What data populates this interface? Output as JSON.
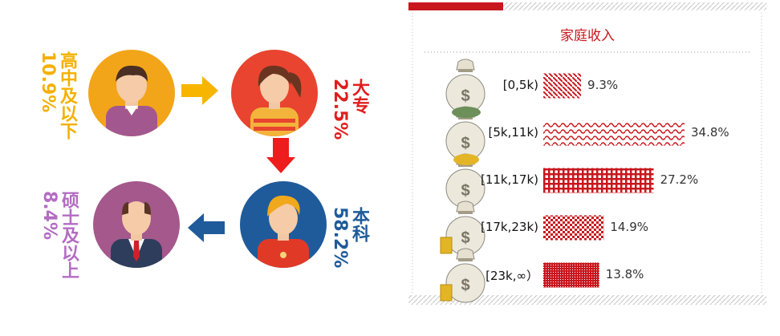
{
  "education": {
    "items": [
      {
        "key": "high-school",
        "label": "高中及以下",
        "percent": "10.9%",
        "color": "#f4b000",
        "value": 10.9
      },
      {
        "key": "junior-college",
        "label": "大专",
        "percent": "22.5%",
        "color": "#e01e1e",
        "value": 22.5
      },
      {
        "key": "bachelor",
        "label": "本科",
        "percent": "58.2%",
        "color": "#1f5b9a",
        "value": 58.2
      },
      {
        "key": "master-plus",
        "label": "硕士及以上",
        "percent": "8.4%",
        "color": "#b36cc2",
        "value": 8.4
      }
    ]
  },
  "chart_data": {
    "type": "bar",
    "title": "家庭收入",
    "categories": [
      "[0,5k)",
      "[5k,11k)",
      "[11k,17k)",
      "[17k,23k)",
      "[23k,∞）"
    ],
    "values": [
      9.3,
      34.8,
      27.2,
      14.9,
      13.8
    ],
    "value_labels": [
      "9.3%",
      "34.8%",
      "27.2%",
      "14.9%",
      "13.8%"
    ],
    "patterns": [
      "diagonal",
      "wave",
      "grid",
      "checker",
      "dense"
    ],
    "orientation": "horizontal",
    "accent_color": "#c8171d"
  }
}
